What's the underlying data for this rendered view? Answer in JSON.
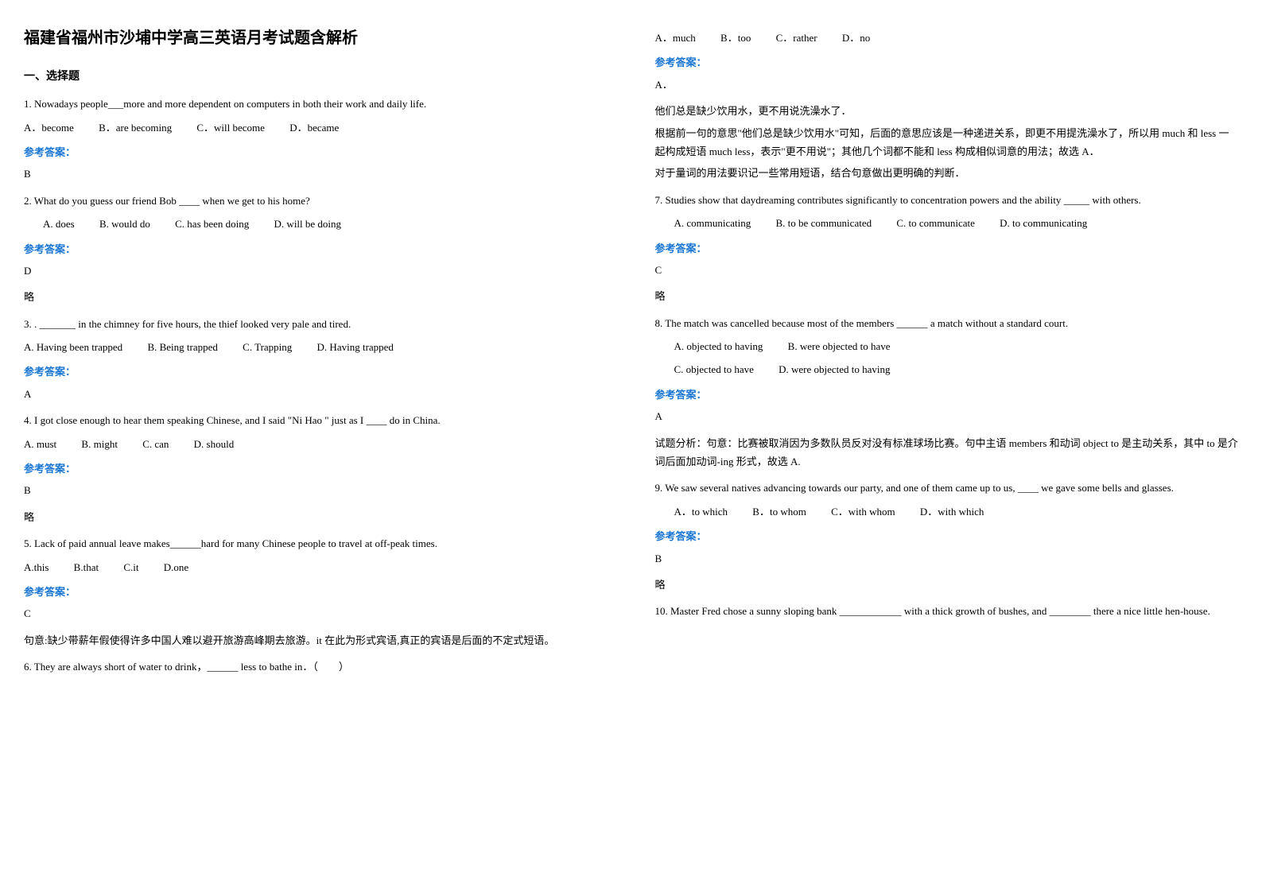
{
  "doc": {
    "title": "福建省福州市沙埔中学高三英语月考试题含解析",
    "section1_heading": "一、选择题",
    "answer_label": "参考答案：",
    "q1": {
      "stem": "1. Nowadays people___more and more dependent on computers in both their work and daily life.",
      "A": "A．become",
      "B": "B．are becoming",
      "C": "C．will become",
      "D": "D．became",
      "ans": "B"
    },
    "q2": {
      "stem": "2. What do you guess our friend Bob ____ when we get to his home?",
      "A": "A. does",
      "B": "B. would do",
      "C": "C. has been doing",
      "D": "D. will be doing",
      "ans": "D",
      "note": "略"
    },
    "q3": {
      "stem": "3. . _______ in the chimney for five hours, the thief looked very pale and tired.",
      "A": "A. Having been trapped",
      "B": "B. Being trapped",
      "C": "C. Trapping",
      "D": "D. Having trapped",
      "ans": "A"
    },
    "q4": {
      "stem": "4. I got close enough to hear them speaking Chinese, and I said \"Ni Hao \" just as I ____ do in China.",
      "A": "A. must",
      "B": "B. might",
      "C": "C. can",
      "D": "D. should",
      "ans": "B",
      "note": "略"
    },
    "q5": {
      "stem": "5. Lack of paid annual leave makes______hard for many Chinese people to travel at off-peak times.",
      "A": "A.this",
      "B": "B.that",
      "C": "C.it",
      "D": "D.one",
      "ans": "C",
      "note": "句意:缺少带薪年假使得许多中国人难以避开旅游高峰期去旅游。it 在此为形式宾语,真正的宾语是后面的不定式短语。"
    },
    "q6": {
      "stem": "6. They are always short of water to drink，______ less to bathe in．（　　）",
      "A": "A．much",
      "B": "B．too",
      "C": "C．rather",
      "D": "D．no",
      "ans": "A．",
      "note1": "他们总是缺少饮用水，更不用说洗澡水了．",
      "note2": "根据前一句的意思\"他们总是缺少饮用水\"可知，后面的意思应该是一种递进关系，即更不用提洗澡水了，所以用 much 和 less 一起构成短语 much less，表示\"更不用说\"；其他几个词都不能和 less 构成相似词意的用法；故选 A．",
      "note3": "对于量词的用法要识记一些常用短语，结合句意做出更明确的判断．"
    },
    "q7": {
      "stem": "7. Studies show that daydreaming contributes significantly to concentration powers and the ability _____ with others.",
      "A": "A. communicating",
      "B": "B. to be communicated",
      "C": "C. to communicate",
      "D": "D. to communicating",
      "ans": "C",
      "note": "略"
    },
    "q8": {
      "stem": "8. The match was cancelled because most of the members ______ a match without a standard court.",
      "A": "A. objected to having",
      "B": "B. were objected to have",
      "C": "C. objected to have",
      "D": "D. were objected to having",
      "ans": "A",
      "note": "试题分析：句意：比赛被取消因为多数队员反对没有标准球场比赛。句中主语 members 和动词 object to 是主动关系，其中 to 是介词后面加动词-ing 形式，故选 A."
    },
    "q9": {
      "stem": "9. We saw several natives advancing towards our party, and one of them came up to us, ____ we gave some bells and glasses.",
      "A": "A．to which",
      "B": "B．to whom",
      "C": "C．with whom",
      "D": "D．with which",
      "ans": "B",
      "note": "略"
    },
    "q10": {
      "stem": "10. Master Fred chose a sunny sloping bank ____________ with a thick growth of bushes, and ________ there a nice little hen-house."
    }
  }
}
